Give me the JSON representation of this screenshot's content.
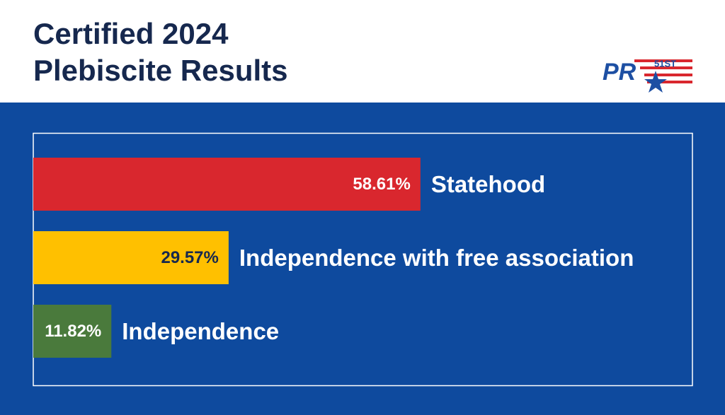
{
  "chart_data": {
    "type": "bar",
    "orientation": "horizontal",
    "title": "Certified 2024 Plebiscite Results",
    "categories": [
      "Statehood",
      "Independence with free association",
      "Independence"
    ],
    "values": [
      58.61,
      29.57,
      11.82
    ],
    "value_labels": [
      "58.61%",
      "29.57%",
      "11.82%"
    ],
    "colors": [
      "#d9272e",
      "#ffc000",
      "#4a7a3c"
    ],
    "xlim": [
      0,
      100
    ]
  },
  "logo": {
    "text": "PR",
    "badge": "51ST"
  }
}
